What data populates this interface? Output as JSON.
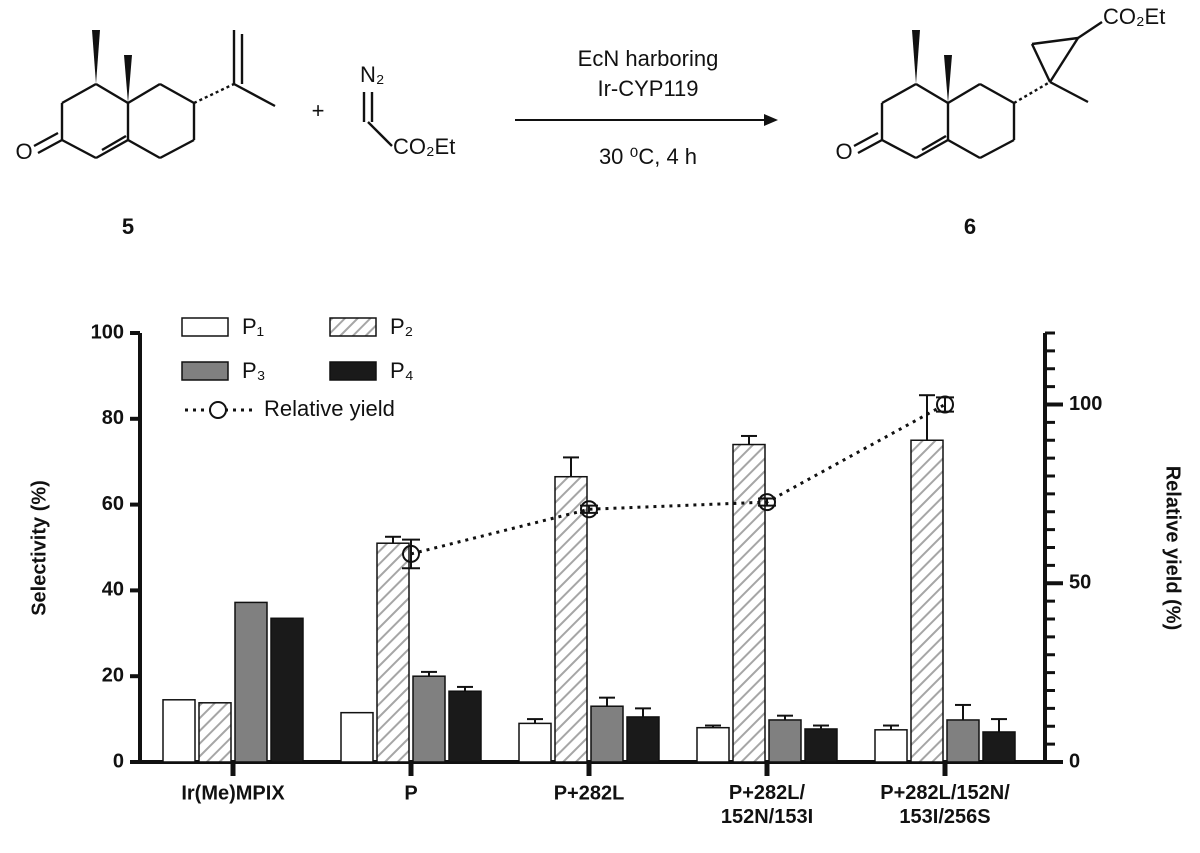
{
  "scheme": {
    "reactant_label": "5",
    "product_label": "6",
    "plus": "+",
    "diazo_n": "N₂",
    "diazo_ester": "CO₂Et",
    "product_ester": "CO₂Et",
    "oxygen_left": "O",
    "oxygen_right": "O",
    "condition_top_1": "EcN harboring",
    "condition_top_2": "Ir-CYP119",
    "condition_bottom": "30 ⁰C, 4 h"
  },
  "chart_data": {
    "type": "bar",
    "ylabel": "Selectivity (%)",
    "y2label": "Relative yield (%)",
    "categories": [
      "Ir(Me)MPIX",
      "P",
      "P+282L",
      "P+282L/\n152N/153I",
      "P+282L/152N/\n153I/256S"
    ],
    "ylim": [
      0,
      100
    ],
    "yticks": [
      0,
      20,
      40,
      60,
      80,
      100
    ],
    "y2lim": [
      0,
      120
    ],
    "y2ticks": [
      0,
      50,
      100
    ],
    "y2minor_step": 5,
    "legend": "top-left",
    "series": [
      {
        "name": "P₁",
        "color": "#ffffff",
        "values": [
          14.5,
          11.5,
          9,
          8,
          7.5
        ],
        "errors": [
          null,
          null,
          1,
          0.5,
          1
        ]
      },
      {
        "name": "P₂",
        "color": "#a6a6a6",
        "hatch": true,
        "values": [
          13.8,
          51,
          66.5,
          74,
          75
        ],
        "errors": [
          null,
          1.5,
          4.5,
          2,
          10.5
        ]
      },
      {
        "name": "P₃",
        "color": "#808080",
        "values": [
          37.2,
          20,
          13,
          9.8,
          9.8
        ],
        "errors": [
          null,
          1,
          2,
          1,
          3.5
        ]
      },
      {
        "name": "P₄",
        "color": "#1a1a1a",
        "values": [
          33.5,
          16.5,
          10.5,
          7.7,
          7
        ],
        "errors": [
          null,
          1,
          2,
          0.8,
          3
        ]
      },
      {
        "name": "Relative yield",
        "type": "line",
        "axis": "y2",
        "color": "#111111",
        "dotted": true,
        "values": [
          null,
          58.2,
          70.7,
          72.7,
          100
        ],
        "errors": [
          null,
          4,
          1,
          1,
          2
        ]
      }
    ]
  }
}
